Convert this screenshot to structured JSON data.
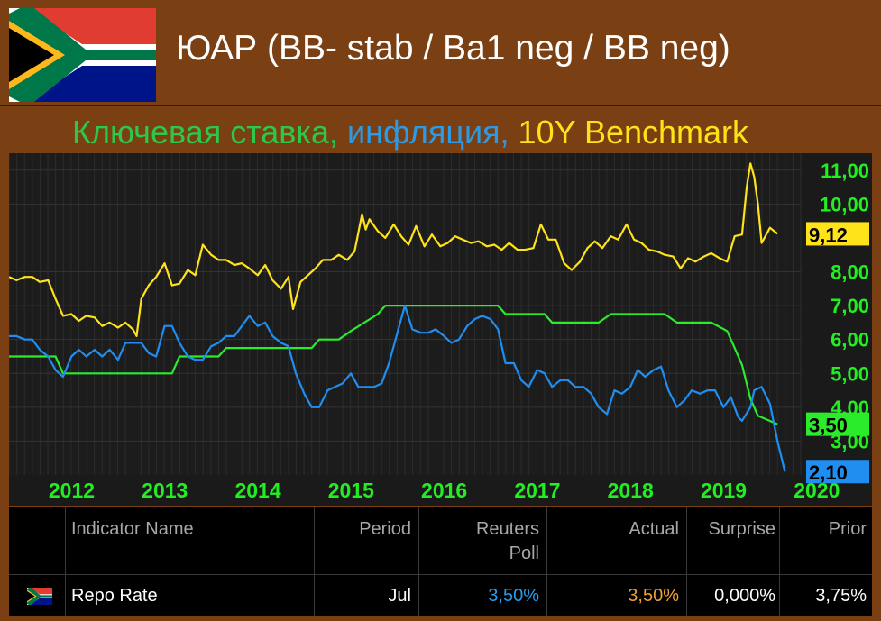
{
  "header": {
    "title": "ЮАР (BB- stab / Ba1 neg / BB neg)",
    "subtitle_parts": [
      "Ключевая ставка,",
      " инфляция,",
      " 10Y Benchmark"
    ],
    "subtitle_colors": [
      "#2cc84a",
      "#2b9be8",
      "#ffe31a"
    ]
  },
  "chart_data": {
    "type": "line",
    "x_tick_labels": [
      "2012",
      "2013",
      "2014",
      "2015",
      "2016",
      "2017",
      "2018",
      "2019",
      "2020"
    ],
    "y_tick_labels": [
      "3,00",
      "4,00",
      "5,00",
      "6,00",
      "7,00",
      "8,00",
      "10,00",
      "11,00"
    ],
    "y_ticks": [
      3,
      4,
      5,
      6,
      7,
      8,
      10,
      11
    ],
    "ylim": [
      2,
      11.5
    ],
    "xlim": [
      2011.75,
      2020.25
    ],
    "grid": true,
    "series": [
      {
        "color": "#ffe31a",
        "last_label": "9,12",
        "points": [
          [
            2011.75,
            7.85
          ],
          [
            2011.83,
            7.75
          ],
          [
            2011.92,
            7.85
          ],
          [
            2012.0,
            7.85
          ],
          [
            2012.08,
            7.7
          ],
          [
            2012.17,
            7.75
          ],
          [
            2012.25,
            7.2
          ],
          [
            2012.33,
            6.7
          ],
          [
            2012.42,
            6.75
          ],
          [
            2012.5,
            6.55
          ],
          [
            2012.58,
            6.7
          ],
          [
            2012.67,
            6.65
          ],
          [
            2012.75,
            6.4
          ],
          [
            2012.83,
            6.5
          ],
          [
            2012.92,
            6.35
          ],
          [
            2013.0,
            6.5
          ],
          [
            2013.08,
            6.3
          ],
          [
            2013.12,
            6.1
          ],
          [
            2013.17,
            7.2
          ],
          [
            2013.25,
            7.6
          ],
          [
            2013.33,
            7.85
          ],
          [
            2013.42,
            8.25
          ],
          [
            2013.5,
            7.6
          ],
          [
            2013.58,
            7.65
          ],
          [
            2013.67,
            8.05
          ],
          [
            2013.75,
            7.9
          ],
          [
            2013.83,
            8.8
          ],
          [
            2013.92,
            8.5
          ],
          [
            2014.0,
            8.35
          ],
          [
            2014.08,
            8.35
          ],
          [
            2014.17,
            8.2
          ],
          [
            2014.25,
            8.25
          ],
          [
            2014.33,
            8.1
          ],
          [
            2014.42,
            7.9
          ],
          [
            2014.5,
            8.2
          ],
          [
            2014.58,
            7.75
          ],
          [
            2014.67,
            7.5
          ],
          [
            2014.75,
            7.85
          ],
          [
            2014.8,
            6.9
          ],
          [
            2014.88,
            7.7
          ],
          [
            2014.96,
            7.9
          ],
          [
            2015.04,
            8.1
          ],
          [
            2015.12,
            8.35
          ],
          [
            2015.21,
            8.35
          ],
          [
            2015.29,
            8.5
          ],
          [
            2015.38,
            8.35
          ],
          [
            2015.46,
            8.6
          ],
          [
            2015.54,
            9.7
          ],
          [
            2015.58,
            9.25
          ],
          [
            2015.62,
            9.55
          ],
          [
            2015.71,
            9.2
          ],
          [
            2015.79,
            9.0
          ],
          [
            2015.88,
            9.4
          ],
          [
            2015.96,
            9.05
          ],
          [
            2016.04,
            8.8
          ],
          [
            2016.12,
            9.35
          ],
          [
            2016.21,
            8.75
          ],
          [
            2016.29,
            9.1
          ],
          [
            2016.38,
            8.75
          ],
          [
            2016.46,
            8.85
          ],
          [
            2016.54,
            9.05
          ],
          [
            2016.62,
            8.95
          ],
          [
            2016.71,
            8.85
          ],
          [
            2016.79,
            8.9
          ],
          [
            2016.88,
            8.75
          ],
          [
            2016.96,
            8.8
          ],
          [
            2017.04,
            8.65
          ],
          [
            2017.12,
            8.85
          ],
          [
            2017.21,
            8.65
          ],
          [
            2017.29,
            8.65
          ],
          [
            2017.38,
            8.7
          ],
          [
            2017.46,
            9.4
          ],
          [
            2017.54,
            8.95
          ],
          [
            2017.62,
            8.95
          ],
          [
            2017.71,
            8.25
          ],
          [
            2017.79,
            8.05
          ],
          [
            2017.88,
            8.3
          ],
          [
            2017.96,
            8.7
          ],
          [
            2018.04,
            8.9
          ],
          [
            2018.12,
            8.7
          ],
          [
            2018.21,
            9.05
          ],
          [
            2018.29,
            8.95
          ],
          [
            2018.38,
            9.4
          ],
          [
            2018.46,
            8.95
          ],
          [
            2018.54,
            8.85
          ],
          [
            2018.62,
            8.65
          ],
          [
            2018.71,
            8.6
          ],
          [
            2018.79,
            8.5
          ],
          [
            2018.88,
            8.45
          ],
          [
            2018.96,
            8.1
          ],
          [
            2019.04,
            8.4
          ],
          [
            2019.12,
            8.3
          ],
          [
            2019.21,
            8.45
          ],
          [
            2019.29,
            8.55
          ],
          [
            2019.38,
            8.4
          ],
          [
            2019.46,
            8.3
          ],
          [
            2019.54,
            9.05
          ],
          [
            2019.62,
            9.1
          ],
          [
            2019.67,
            10.5
          ],
          [
            2019.71,
            11.2
          ],
          [
            2019.75,
            10.8
          ],
          [
            2019.79,
            10.0
          ],
          [
            2019.83,
            8.85
          ],
          [
            2019.92,
            9.3
          ],
          [
            2020.0,
            9.12
          ]
        ]
      },
      {
        "color": "#2aec2a",
        "last_label": "3,50",
        "points": [
          [
            2011.75,
            5.5
          ],
          [
            2012.25,
            5.5
          ],
          [
            2012.33,
            5.0
          ],
          [
            2013.42,
            5.0
          ],
          [
            2013.5,
            5.0
          ],
          [
            2013.58,
            5.5
          ],
          [
            2014.0,
            5.5
          ],
          [
            2014.08,
            5.75
          ],
          [
            2014.5,
            5.75
          ],
          [
            2014.58,
            5.75
          ],
          [
            2015.0,
            5.75
          ],
          [
            2015.08,
            6.0
          ],
          [
            2015.29,
            6.0
          ],
          [
            2015.42,
            6.25
          ],
          [
            2015.71,
            6.75
          ],
          [
            2015.79,
            7.0
          ],
          [
            2017.0,
            7.0
          ],
          [
            2017.08,
            6.75
          ],
          [
            2017.5,
            6.75
          ],
          [
            2017.58,
            6.5
          ],
          [
            2018.08,
            6.5
          ],
          [
            2018.21,
            6.75
          ],
          [
            2018.79,
            6.75
          ],
          [
            2018.92,
            6.5
          ],
          [
            2019.29,
            6.5
          ],
          [
            2019.46,
            6.25
          ],
          [
            2019.54,
            5.75
          ],
          [
            2019.62,
            5.25
          ],
          [
            2019.71,
            4.25
          ],
          [
            2019.79,
            3.75
          ],
          [
            2020.0,
            3.5
          ]
        ]
      },
      {
        "color": "#1f8ef0",
        "last_label": "2,10",
        "points": [
          [
            2011.75,
            6.1
          ],
          [
            2011.83,
            6.1
          ],
          [
            2011.92,
            6.0
          ],
          [
            2012.0,
            6.0
          ],
          [
            2012.08,
            5.7
          ],
          [
            2012.17,
            5.5
          ],
          [
            2012.25,
            5.1
          ],
          [
            2012.33,
            4.9
          ],
          [
            2012.42,
            5.5
          ],
          [
            2012.5,
            5.7
          ],
          [
            2012.58,
            5.5
          ],
          [
            2012.67,
            5.7
          ],
          [
            2012.75,
            5.5
          ],
          [
            2012.83,
            5.7
          ],
          [
            2012.92,
            5.4
          ],
          [
            2013.0,
            5.9
          ],
          [
            2013.08,
            5.9
          ],
          [
            2013.17,
            5.9
          ],
          [
            2013.25,
            5.6
          ],
          [
            2013.33,
            5.5
          ],
          [
            2013.42,
            6.4
          ],
          [
            2013.5,
            6.4
          ],
          [
            2013.58,
            5.9
          ],
          [
            2013.67,
            5.5
          ],
          [
            2013.75,
            5.4
          ],
          [
            2013.83,
            5.4
          ],
          [
            2013.92,
            5.8
          ],
          [
            2014.0,
            5.9
          ],
          [
            2014.08,
            6.1
          ],
          [
            2014.17,
            6.1
          ],
          [
            2014.25,
            6.4
          ],
          [
            2014.33,
            6.7
          ],
          [
            2014.42,
            6.4
          ],
          [
            2014.5,
            6.5
          ],
          [
            2014.58,
            6.1
          ],
          [
            2014.67,
            5.9
          ],
          [
            2014.75,
            5.8
          ],
          [
            2014.83,
            5.0
          ],
          [
            2014.92,
            4.4
          ],
          [
            2015.0,
            4.0
          ],
          [
            2015.08,
            4.0
          ],
          [
            2015.17,
            4.5
          ],
          [
            2015.25,
            4.6
          ],
          [
            2015.33,
            4.7
          ],
          [
            2015.42,
            5.0
          ],
          [
            2015.5,
            4.6
          ],
          [
            2015.58,
            4.6
          ],
          [
            2015.67,
            4.6
          ],
          [
            2015.75,
            4.7
          ],
          [
            2015.83,
            5.3
          ],
          [
            2015.92,
            6.2
          ],
          [
            2016.0,
            7.0
          ],
          [
            2016.08,
            6.3
          ],
          [
            2016.17,
            6.2
          ],
          [
            2016.25,
            6.2
          ],
          [
            2016.33,
            6.3
          ],
          [
            2016.42,
            6.1
          ],
          [
            2016.5,
            5.9
          ],
          [
            2016.58,
            6.0
          ],
          [
            2016.67,
            6.4
          ],
          [
            2016.75,
            6.6
          ],
          [
            2016.83,
            6.7
          ],
          [
            2016.92,
            6.6
          ],
          [
            2017.0,
            6.3
          ],
          [
            2017.08,
            5.3
          ],
          [
            2017.17,
            5.3
          ],
          [
            2017.25,
            4.8
          ],
          [
            2017.33,
            4.6
          ],
          [
            2017.42,
            5.1
          ],
          [
            2017.5,
            5.0
          ],
          [
            2017.58,
            4.6
          ],
          [
            2017.67,
            4.8
          ],
          [
            2017.75,
            4.8
          ],
          [
            2017.83,
            4.6
          ],
          [
            2017.92,
            4.6
          ],
          [
            2018.0,
            4.4
          ],
          [
            2018.08,
            4.0
          ],
          [
            2018.17,
            3.8
          ],
          [
            2018.25,
            4.5
          ],
          [
            2018.33,
            4.4
          ],
          [
            2018.42,
            4.6
          ],
          [
            2018.5,
            5.1
          ],
          [
            2018.58,
            4.9
          ],
          [
            2018.67,
            5.1
          ],
          [
            2018.75,
            5.2
          ],
          [
            2018.83,
            4.5
          ],
          [
            2018.92,
            4.0
          ],
          [
            2019.0,
            4.2
          ],
          [
            2019.08,
            4.5
          ],
          [
            2019.17,
            4.4
          ],
          [
            2019.25,
            4.5
          ],
          [
            2019.33,
            4.5
          ],
          [
            2019.42,
            4.0
          ],
          [
            2019.5,
            4.3
          ],
          [
            2019.58,
            3.7
          ],
          [
            2019.62,
            3.6
          ],
          [
            2019.71,
            4.0
          ],
          [
            2019.75,
            4.5
          ],
          [
            2019.83,
            4.6
          ],
          [
            2019.92,
            4.1
          ],
          [
            2020.0,
            3.0
          ],
          [
            2020.08,
            2.1
          ]
        ]
      }
    ]
  },
  "table": {
    "headers": [
      {
        "lines": [
          "Indicator Name"
        ],
        "align": "left"
      },
      {
        "lines": [
          "Period"
        ],
        "align": "right"
      },
      {
        "lines": [
          "Reuters",
          "Poll"
        ],
        "align": "right"
      },
      {
        "lines": [
          "Actual"
        ],
        "align": "right"
      },
      {
        "lines": [
          "Surprise"
        ],
        "align": "right"
      },
      {
        "lines": [
          "Prior"
        ],
        "align": "right"
      }
    ],
    "row": {
      "indicator": "Repo Rate",
      "period": "Jul",
      "poll": "3,50%",
      "actual": "3,50%",
      "surprise": "0,000%",
      "prior": "3,75%"
    },
    "colors": {
      "poll": "#2b9be8",
      "actual": "#f0a030",
      "default": "#ffffff"
    }
  }
}
